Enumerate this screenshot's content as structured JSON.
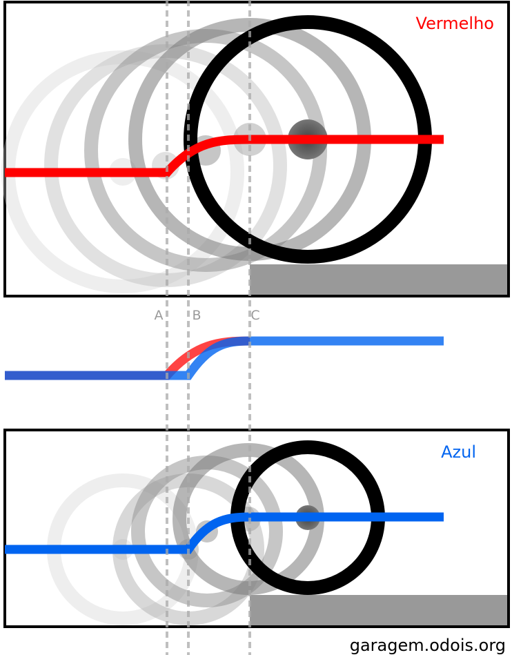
{
  "panels": {
    "top": {
      "title": "Vermelho",
      "color": "#ff0000"
    },
    "bottom": {
      "title": "Azul",
      "color": "#0064f0"
    }
  },
  "markers": {
    "a": "A",
    "b": "B",
    "c": "C"
  },
  "comparison": {
    "red": "#ff3030",
    "blue": "#2e5fd8"
  },
  "colors": {
    "ring": "#000000",
    "ground": "#999999",
    "guide": "#aaaaaa"
  },
  "footer": "garagem.odois.org"
}
